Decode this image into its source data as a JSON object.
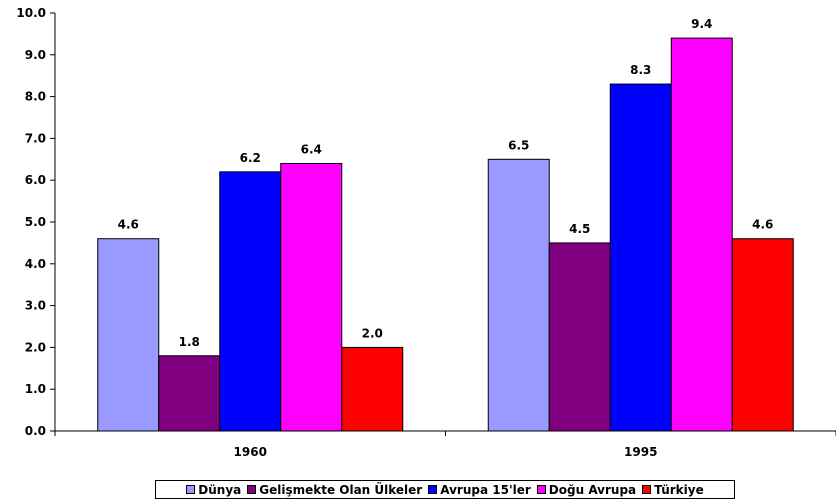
{
  "chart_data": {
    "type": "bar",
    "categories": [
      "1960",
      "1995"
    ],
    "series": [
      {
        "name": "Dünya",
        "color": "#9999FF",
        "values": [
          4.6,
          6.5
        ]
      },
      {
        "name": "Gelişmekte Olan Ülkeler",
        "color": "#800080",
        "values": [
          1.8,
          4.5
        ]
      },
      {
        "name": "Avrupa 15'ler",
        "color": "#0000FF",
        "values": [
          6.2,
          8.3
        ]
      },
      {
        "name": "Doğu Avrupa",
        "color": "#FF00FF",
        "values": [
          6.4,
          9.4
        ]
      },
      {
        "name": "Türkiye",
        "color": "#FF0000",
        "values": [
          2.0,
          4.6
        ]
      }
    ],
    "data_labels": [
      [
        "4.6",
        "6.5"
      ],
      [
        "1.8",
        "4.5"
      ],
      [
        "6.2",
        "8.3"
      ],
      [
        "6.4",
        "9.4"
      ],
      [
        "2.0",
        "4.6"
      ]
    ],
    "yticks": [
      "0.0",
      "1.0",
      "2.0",
      "3.0",
      "4.0",
      "5.0",
      "6.0",
      "7.0",
      "8.0",
      "9.0",
      "10.0"
    ],
    "ylim": [
      0,
      10
    ],
    "grid": false,
    "legend_position": "bottom"
  }
}
